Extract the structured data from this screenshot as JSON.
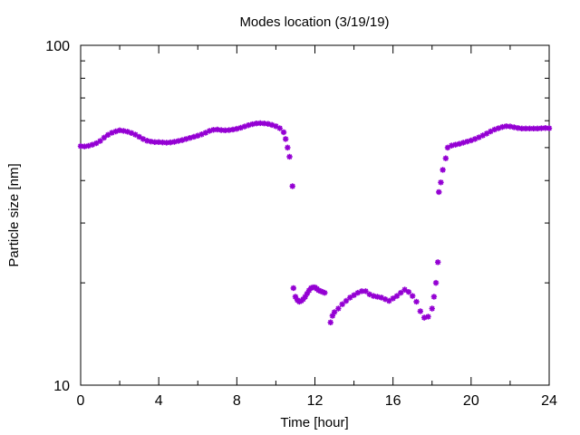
{
  "chart_data": {
    "type": "scatter",
    "title": "Modes location (3/19/19)",
    "xlabel": "Time [hour]",
    "ylabel": "Particle size [nm]",
    "xlim": [
      0,
      24
    ],
    "ylim": [
      10,
      100
    ],
    "yscale": "log",
    "xticks": [
      0,
      4,
      8,
      12,
      16,
      20,
      24
    ],
    "xtick_labels": [
      "0",
      "4",
      "8",
      "12",
      "16",
      "20",
      "24"
    ],
    "yticks": [
      10,
      100
    ],
    "ytick_labels": [
      "10",
      "100"
    ],
    "marker_color": "#9400d3",
    "marker": "star",
    "grid": false,
    "series": [
      {
        "points": [
          [
            0.0,
            50.5
          ],
          [
            0.2,
            50.4
          ],
          [
            0.4,
            50.6
          ],
          [
            0.6,
            51.0
          ],
          [
            0.8,
            51.5
          ],
          [
            1.0,
            52.3
          ],
          [
            1.2,
            53.5
          ],
          [
            1.4,
            54.5
          ],
          [
            1.6,
            55.3
          ],
          [
            1.8,
            55.8
          ],
          [
            2.0,
            56.2
          ],
          [
            2.2,
            56.0
          ],
          [
            2.4,
            55.7
          ],
          [
            2.6,
            55.2
          ],
          [
            2.8,
            54.6
          ],
          [
            3.0,
            53.8
          ],
          [
            3.2,
            53.0
          ],
          [
            3.4,
            52.4
          ],
          [
            3.6,
            52.1
          ],
          [
            3.8,
            51.9
          ],
          [
            4.0,
            51.9
          ],
          [
            4.2,
            51.8
          ],
          [
            4.4,
            51.7
          ],
          [
            4.6,
            51.8
          ],
          [
            4.8,
            52.0
          ],
          [
            5.0,
            52.3
          ],
          [
            5.2,
            52.6
          ],
          [
            5.4,
            53.0
          ],
          [
            5.6,
            53.4
          ],
          [
            5.8,
            53.8
          ],
          [
            6.0,
            54.2
          ],
          [
            6.2,
            54.7
          ],
          [
            6.4,
            55.3
          ],
          [
            6.6,
            56.0
          ],
          [
            6.8,
            56.4
          ],
          [
            7.0,
            56.5
          ],
          [
            7.2,
            56.3
          ],
          [
            7.4,
            56.2
          ],
          [
            7.6,
            56.3
          ],
          [
            7.8,
            56.5
          ],
          [
            8.0,
            56.8
          ],
          [
            8.2,
            57.2
          ],
          [
            8.4,
            57.7
          ],
          [
            8.6,
            58.2
          ],
          [
            8.8,
            58.6
          ],
          [
            9.0,
            58.9
          ],
          [
            9.2,
            59.0
          ],
          [
            9.4,
            58.9
          ],
          [
            9.6,
            58.7
          ],
          [
            9.8,
            58.3
          ],
          [
            10.0,
            57.8
          ],
          [
            10.2,
            57.0
          ],
          [
            10.4,
            55.5
          ],
          [
            10.5,
            53.0
          ],
          [
            10.6,
            50.0
          ],
          [
            10.7,
            47.0
          ],
          [
            10.85,
            38.5
          ],
          [
            10.9,
            19.3
          ],
          [
            11.0,
            18.2
          ],
          [
            11.1,
            17.8
          ],
          [
            11.2,
            17.6
          ],
          [
            11.3,
            17.7
          ],
          [
            11.4,
            17.9
          ],
          [
            11.5,
            18.2
          ],
          [
            11.6,
            18.6
          ],
          [
            11.7,
            19.0
          ],
          [
            11.8,
            19.3
          ],
          [
            11.9,
            19.4
          ],
          [
            12.0,
            19.4
          ],
          [
            12.1,
            19.2
          ],
          [
            12.2,
            19.0
          ],
          [
            12.3,
            18.9
          ],
          [
            12.4,
            18.8
          ],
          [
            12.5,
            18.7
          ],
          [
            12.8,
            15.3
          ],
          [
            12.9,
            16.0
          ],
          [
            13.0,
            16.4
          ],
          [
            13.2,
            16.8
          ],
          [
            13.4,
            17.3
          ],
          [
            13.6,
            17.7
          ],
          [
            13.8,
            18.1
          ],
          [
            14.0,
            18.4
          ],
          [
            14.2,
            18.7
          ],
          [
            14.4,
            18.9
          ],
          [
            14.6,
            18.9
          ],
          [
            14.8,
            18.5
          ],
          [
            15.0,
            18.3
          ],
          [
            15.2,
            18.2
          ],
          [
            15.4,
            18.1
          ],
          [
            15.6,
            17.9
          ],
          [
            15.8,
            17.7
          ],
          [
            16.0,
            18.0
          ],
          [
            16.2,
            18.3
          ],
          [
            16.4,
            18.7
          ],
          [
            16.6,
            19.1
          ],
          [
            16.8,
            18.8
          ],
          [
            17.0,
            18.3
          ],
          [
            17.2,
            17.6
          ],
          [
            17.4,
            16.5
          ],
          [
            17.6,
            15.8
          ],
          [
            17.8,
            15.9
          ],
          [
            18.0,
            16.8
          ],
          [
            18.1,
            18.2
          ],
          [
            18.2,
            20.0
          ],
          [
            18.3,
            23.0
          ],
          [
            18.35,
            37.0
          ],
          [
            18.45,
            39.5
          ],
          [
            18.55,
            43.0
          ],
          [
            18.7,
            46.5
          ],
          [
            18.8,
            50.0
          ],
          [
            19.0,
            50.7
          ],
          [
            19.2,
            51.0
          ],
          [
            19.4,
            51.3
          ],
          [
            19.6,
            51.7
          ],
          [
            19.8,
            52.1
          ],
          [
            20.0,
            52.5
          ],
          [
            20.2,
            53.0
          ],
          [
            20.4,
            53.6
          ],
          [
            20.6,
            54.3
          ],
          [
            20.8,
            55.0
          ],
          [
            21.0,
            55.8
          ],
          [
            21.2,
            56.5
          ],
          [
            21.4,
            57.0
          ],
          [
            21.6,
            57.5
          ],
          [
            21.8,
            57.8
          ],
          [
            22.0,
            57.7
          ],
          [
            22.2,
            57.4
          ],
          [
            22.4,
            57.1
          ],
          [
            22.6,
            56.9
          ],
          [
            22.8,
            56.9
          ],
          [
            23.0,
            56.9
          ],
          [
            23.2,
            56.9
          ],
          [
            23.4,
            56.9
          ],
          [
            23.6,
            57.0
          ],
          [
            23.8,
            57.1
          ],
          [
            24.0,
            57.0
          ]
        ]
      }
    ]
  }
}
